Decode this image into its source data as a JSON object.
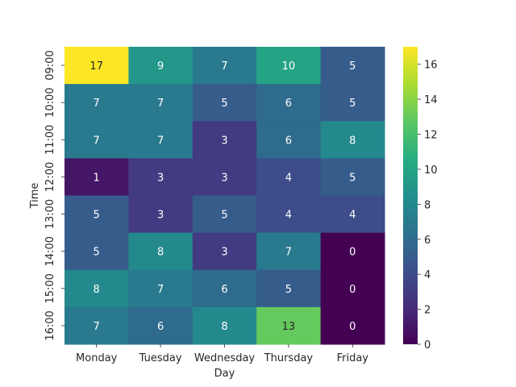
{
  "chart_data": {
    "type": "heatmap",
    "title": "",
    "xlabel": "Day",
    "ylabel": "Time",
    "x_categories": [
      "Monday",
      "Tuesday",
      "Wednesday",
      "Thursday",
      "Friday"
    ],
    "y_categories": [
      "09:00",
      "10:00",
      "11:00",
      "12:00",
      "13:00",
      "14:00",
      "15:00",
      "16:00"
    ],
    "values": [
      [
        17,
        9,
        7,
        10,
        5
      ],
      [
        7,
        7,
        5,
        6,
        5
      ],
      [
        7,
        7,
        3,
        6,
        8
      ],
      [
        1,
        3,
        3,
        4,
        5
      ],
      [
        5,
        3,
        5,
        4,
        4
      ],
      [
        5,
        8,
        3,
        7,
        0
      ],
      [
        8,
        7,
        6,
        5,
        0
      ],
      [
        7,
        6,
        8,
        13,
        0
      ]
    ],
    "colormap": "viridis",
    "vmin": 0,
    "vmax": 17,
    "annotations": true,
    "colorbar": {
      "ticks": [
        0,
        2,
        4,
        6,
        8,
        10,
        12,
        14,
        16
      ],
      "tick_labels": [
        "0",
        "2",
        "4",
        "6",
        "8",
        "10",
        "12",
        "14",
        "16"
      ],
      "placement": "right"
    }
  }
}
